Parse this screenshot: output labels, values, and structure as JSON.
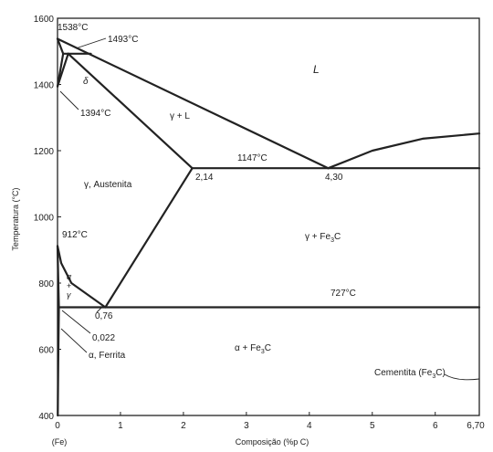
{
  "chart_data": {
    "type": "phase-diagram",
    "xlabel": "Composição (%p C)",
    "ylabel": "Temperatura (°C)",
    "xlim": [
      0,
      6.7
    ],
    "ylim": [
      400,
      1600
    ],
    "xticks": [
      "0",
      "1",
      "2",
      "3",
      "4",
      "5",
      "6",
      "6,70"
    ],
    "x_origin_label": "(Fe)",
    "yticks": [
      "400",
      "600",
      "800",
      "1000",
      "1200",
      "1400",
      "1600"
    ],
    "points": {
      "melt_fe": {
        "x": 0.0,
        "y": 1538
      },
      "peritectic": {
        "x": 0.17,
        "y": 1493
      },
      "delta_limit": {
        "x": 0.09,
        "y": 1493
      },
      "liq_peri": {
        "x": 0.53,
        "y": 1493
      },
      "delta_low": {
        "x": 0.0,
        "y": 1394
      },
      "gamma_max": {
        "x": 2.14,
        "y": 1147
      },
      "eutectic": {
        "x": 4.3,
        "y": 1147
      },
      "fe_912": {
        "x": 0.0,
        "y": 912
      },
      "eutectoid": {
        "x": 0.76,
        "y": 727
      },
      "alpha_max": {
        "x": 0.022,
        "y": 727
      },
      "cementite_top": {
        "x": 6.7,
        "y": 1252
      }
    },
    "lines": [
      {
        "name": "liquidus-left",
        "pts": [
          [
            0.0,
            1538
          ],
          [
            4.3,
            1147
          ]
        ]
      },
      {
        "name": "liquidus-right",
        "pts": [
          [
            4.3,
            1147
          ],
          [
            5.0,
            1200
          ],
          [
            5.8,
            1236
          ],
          [
            6.7,
            1252
          ]
        ]
      },
      {
        "name": "solidus-gamma",
        "pts": [
          [
            0.17,
            1493
          ],
          [
            2.14,
            1147
          ]
        ]
      },
      {
        "name": "peritectic-line",
        "pts": [
          [
            0.09,
            1493
          ],
          [
            0.53,
            1493
          ]
        ]
      },
      {
        "name": "delta-solidus",
        "pts": [
          [
            0.0,
            1538
          ],
          [
            0.09,
            1493
          ]
        ]
      },
      {
        "name": "delta-gamma-a",
        "pts": [
          [
            0.0,
            1394
          ],
          [
            0.09,
            1493
          ]
        ]
      },
      {
        "name": "delta-gamma-b",
        "pts": [
          [
            0.0,
            1394
          ],
          [
            0.17,
            1493
          ]
        ]
      },
      {
        "name": "eutectic-line",
        "pts": [
          [
            2.14,
            1147
          ],
          [
            6.7,
            1147
          ]
        ]
      },
      {
        "name": "acm-line",
        "pts": [
          [
            2.14,
            1147
          ],
          [
            0.76,
            727
          ]
        ]
      },
      {
        "name": "a3-line",
        "pts": [
          [
            0.0,
            912
          ],
          [
            0.06,
            860
          ],
          [
            0.22,
            800
          ],
          [
            0.76,
            727
          ]
        ]
      },
      {
        "name": "alpha-gamma",
        "pts": [
          [
            0.0,
            912
          ],
          [
            0.022,
            727
          ]
        ]
      },
      {
        "name": "eutectoid-line",
        "pts": [
          [
            0.022,
            727
          ],
          [
            6.7,
            727
          ]
        ]
      },
      {
        "name": "alpha-solvus",
        "pts": [
          [
            0.022,
            727
          ],
          [
            0.012,
            560
          ],
          [
            0.004,
            400
          ]
        ]
      }
    ],
    "labels": {
      "t1538": "1538°C",
      "t1493": "1493°C",
      "t1394": "1394°C",
      "t1147": "1147°C",
      "t912": "912°C",
      "t727": "727°C",
      "c214": "2,14",
      "c430": "4,30",
      "c076": "0,76",
      "c0022": "0,022",
      "L": "L",
      "delta": "δ",
      "gamma_L": "γ + L",
      "austenita": "γ, Austenita",
      "gamma_fe3c": "γ + Fe",
      "gamma_fe3c_sub": "3",
      "gamma_fe3c_end": "C",
      "alpha_gamma_a": "α",
      "alpha_gamma_plus": "+",
      "alpha_gamma_g": "γ",
      "ferrita": "α, Ferrita",
      "alpha_fe3c": "α + Fe",
      "alpha_fe3c_sub": "3",
      "alpha_fe3c_end": "C",
      "cementita": "Cementita (Fe",
      "cementita_sub": "3",
      "cementita_end": "C)"
    }
  }
}
